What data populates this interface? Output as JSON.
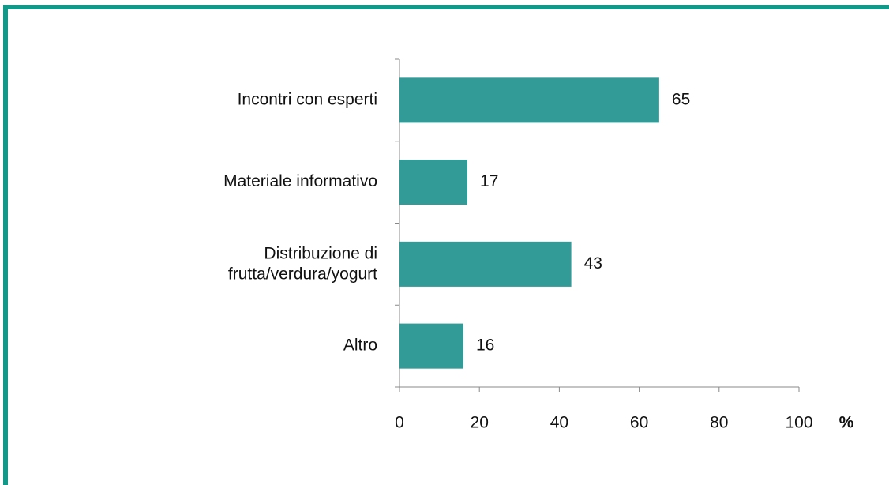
{
  "chart_data": {
    "type": "bar",
    "orientation": "horizontal",
    "categories": [
      "Incontri con esperti",
      "Materiale informativo",
      "Distribuzione di\nfrutta/verdura/yogurt",
      "Altro"
    ],
    "values": [
      65,
      17,
      43,
      16
    ],
    "color": "#339b97",
    "xlabel": "%",
    "xlim": [
      0,
      100
    ],
    "xticks": [
      0,
      20,
      40,
      60,
      80,
      100
    ],
    "grid": false
  }
}
